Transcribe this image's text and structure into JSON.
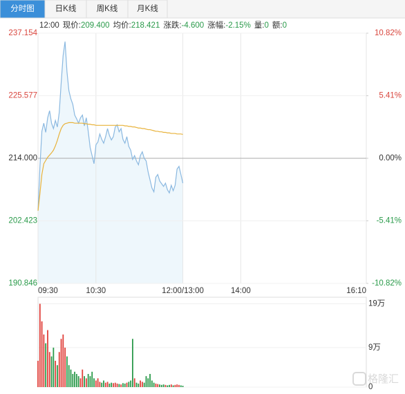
{
  "tabs": [
    "分时图",
    "日K线",
    "周K线",
    "月K线"
  ],
  "info": {
    "time": "12:00",
    "value_color": "#2a9a4a",
    "items": [
      {
        "label": "现价:",
        "value": "209.400"
      },
      {
        "label": "均价:",
        "value": "218.421"
      },
      {
        "label": "涨跌:",
        "value": "-4.600"
      },
      {
        "label": "涨幅:",
        "value": "-2.15%"
      },
      {
        "label": "量:",
        "value": "0"
      },
      {
        "label": "额:",
        "value": "0"
      }
    ]
  },
  "watermark": "格隆汇",
  "chart_data": [
    {
      "type": "line",
      "up_color": "#d9463e",
      "down_color": "#2a9a4a",
      "area_color": "#eef7fc",
      "x": [
        0,
        2,
        4,
        6,
        8,
        10,
        12,
        14,
        16,
        18,
        20,
        22,
        24,
        26,
        28,
        30,
        32,
        34,
        36,
        38,
        40,
        42,
        44,
        46,
        48,
        50,
        52,
        54,
        56,
        58,
        60,
        62,
        64,
        66,
        68,
        70,
        72,
        74,
        76,
        78,
        80,
        82,
        84,
        86,
        88,
        90,
        92,
        94,
        96,
        98,
        100,
        102,
        104,
        106,
        108,
        110,
        112,
        114,
        116,
        118,
        120,
        122,
        124,
        126,
        128,
        130,
        132,
        134,
        136,
        138,
        140,
        142,
        144,
        146,
        148,
        150
      ],
      "series": [
        {
          "color": "#8ab8e0",
          "values": [
            204.3,
            212.5,
            219.0,
            220.5,
            218.8,
            221.5,
            222.8,
            220.5,
            219.5,
            221.0,
            219.8,
            222.5,
            228.0,
            233.0,
            235.6,
            230.0,
            226.5,
            225.0,
            224.0,
            222.0,
            221.3,
            220.5,
            221.5,
            222.0,
            220.0,
            221.5,
            219.0,
            216.0,
            214.5,
            213.0,
            216.5,
            217.0,
            218.5,
            217.5,
            216.8,
            218.0,
            219.5,
            218.2,
            217.4,
            218.0,
            219.8,
            220.2,
            218.9,
            219.5,
            217.5,
            216.8,
            218.0,
            216.2,
            215.5,
            213.8,
            214.5,
            213.5,
            212.8,
            214.5,
            215.2,
            214.0,
            213.5,
            211.5,
            210.0,
            208.5,
            207.8,
            210.5,
            211.0,
            209.8,
            209.3,
            208.8,
            209.4,
            208.2,
            207.6,
            209.0,
            208.0,
            209.0,
            212.0,
            212.5,
            211.0,
            209.4
          ]
        },
        {
          "color": "#e8b23a",
          "values": [
            204.3,
            207.5,
            211.0,
            213.0,
            213.6,
            214.2,
            214.6,
            215.0,
            215.5,
            216.3,
            217.3,
            218.5,
            219.5,
            220.1,
            220.4,
            220.5,
            220.6,
            220.6,
            220.6,
            220.5,
            220.5,
            220.5,
            220.5,
            220.5,
            220.4,
            220.4,
            220.3,
            220.3,
            220.2,
            220.2,
            220.1,
            220.1,
            220.1,
            220.1,
            220.1,
            220.1,
            220.1,
            220.1,
            220.1,
            220.1,
            220.1,
            220.1,
            220.1,
            220.1,
            220.1,
            220.0,
            220.0,
            219.9,
            219.9,
            219.8,
            219.8,
            219.7,
            219.6,
            219.6,
            219.5,
            219.5,
            219.4,
            219.3,
            219.3,
            219.2,
            219.1,
            219.0,
            219.0,
            218.9,
            218.9,
            218.8,
            218.8,
            218.7,
            218.7,
            218.6,
            218.6,
            218.6,
            218.5,
            218.5,
            218.5,
            218.421
          ]
        }
      ],
      "xlim": [
        0,
        340
      ],
      "xticks": [
        {
          "value": 0,
          "label": "09:30"
        },
        {
          "value": 60,
          "label": "10:30"
        },
        {
          "value": 150,
          "label": "12:00/13:00"
        },
        {
          "value": 210,
          "label": "14:00"
        },
        {
          "value": 340,
          "label": "16:10"
        }
      ],
      "ylim": [
        190.846,
        237.154
      ],
      "yticks": [
        237.154,
        225.577,
        {
          "value": 214,
          "label": "214.000"
        },
        202.423,
        190.846
      ],
      "y2lim": [
        -10.82,
        10.82
      ],
      "y2ticks": [
        {
          "value": 10.82,
          "label": "10.82%"
        },
        {
          "value": 5.41,
          "label": "5.41%"
        },
        {
          "value": 0,
          "label": "0.00%"
        },
        {
          "value": -5.41,
          "label": "-5.41%"
        },
        {
          "value": -10.82,
          "label": "-10.82%"
        }
      ]
    },
    {
      "type": "bar",
      "up_color": "#e0403a",
      "down_color": "#2a9a4a",
      "x": [
        0,
        2,
        4,
        6,
        8,
        10,
        12,
        14,
        16,
        18,
        20,
        22,
        24,
        26,
        28,
        30,
        32,
        34,
        36,
        38,
        40,
        42,
        44,
        46,
        48,
        50,
        52,
        54,
        56,
        58,
        60,
        62,
        64,
        66,
        68,
        70,
        72,
        74,
        76,
        78,
        80,
        82,
        84,
        86,
        88,
        90,
        92,
        94,
        96,
        98,
        100,
        102,
        104,
        106,
        108,
        110,
        112,
        114,
        116,
        118,
        120,
        122,
        124,
        126,
        128,
        130,
        132,
        134,
        136,
        138,
        140,
        142,
        144,
        146,
        148,
        150
      ],
      "values": [
        60000,
        190000,
        150000,
        120000,
        100000,
        130000,
        80000,
        70000,
        90000,
        60000,
        50000,
        80000,
        110000,
        120000,
        90000,
        70000,
        50000,
        40000,
        30000,
        35000,
        30000,
        25000,
        20000,
        40000,
        25000,
        20000,
        30000,
        25000,
        35000,
        20000,
        15000,
        20000,
        12000,
        10000,
        15000,
        10000,
        12000,
        8000,
        10000,
        9000,
        10000,
        8000,
        7000,
        6000,
        9000,
        8000,
        10000,
        12000,
        15000,
        110000,
        20000,
        10000,
        8000,
        15000,
        12000,
        10000,
        25000,
        20000,
        30000,
        15000,
        10000,
        8000,
        7000,
        6000,
        5000,
        6000,
        5000,
        4000,
        5000,
        6000,
        4000,
        5000,
        6000,
        5000,
        4000,
        3000
      ],
      "xlim": [
        0,
        340
      ],
      "ylim": [
        0,
        205000
      ],
      "yticks": [
        {
          "value": 190000,
          "label": "19万"
        },
        {
          "value": 90000,
          "label": "9万"
        },
        0
      ]
    }
  ]
}
